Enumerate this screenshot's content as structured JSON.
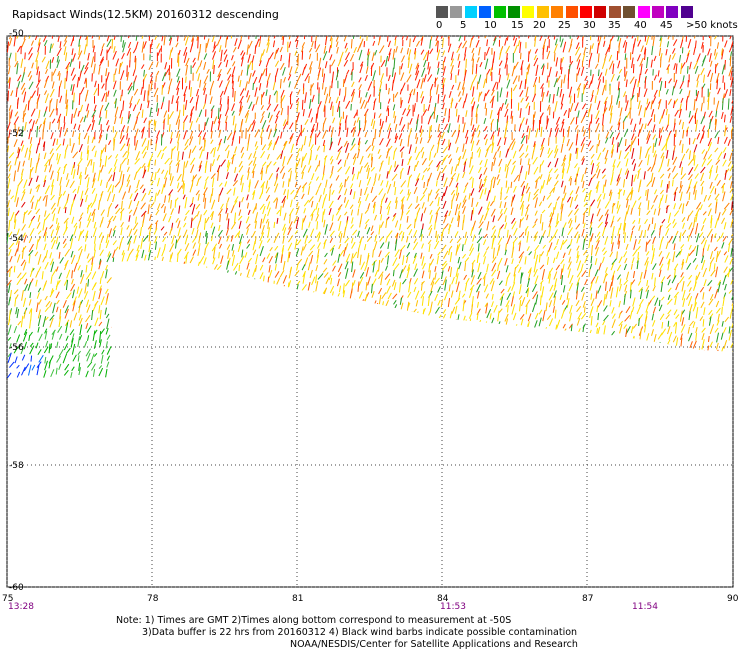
{
  "title": "Rapidsact Winds(12.5KM) 20160312 descending",
  "legend": {
    "colors": [
      "#555555",
      "#999999",
      "#00d0ff",
      "#0060ff",
      "#00c000",
      "#009000",
      "#ffff00",
      "#ffc000",
      "#ff8000",
      "#ff5000",
      "#ff0000",
      "#d00000",
      "#a05030",
      "#705030",
      "#ff00ff",
      "#c000c0",
      "#8000c0",
      "#500090"
    ],
    "labels": [
      "0",
      "5",
      "10",
      "15",
      "20",
      "25",
      "30",
      "35",
      "40",
      "45",
      ">50 knots"
    ]
  },
  "map": {
    "lon_ticks": [
      "75",
      "78",
      "81",
      "84",
      "87",
      "90"
    ],
    "lat_ticks": [
      "-50",
      "-52",
      "-54",
      "-56",
      "-58",
      "-60"
    ],
    "times": [
      "13:28",
      "11:53",
      "11:54"
    ]
  },
  "notes": {
    "line1": "Note: 1) Times are GMT 2)Times along bottom correspond to measurement at -50S",
    "line2": "3)Data buffer is 22 hrs from 20160312 4) Black wind barbs indicate possible contamination",
    "line3": "NOAA/NESDIS/Center for Satellite Applications and Research"
  }
}
